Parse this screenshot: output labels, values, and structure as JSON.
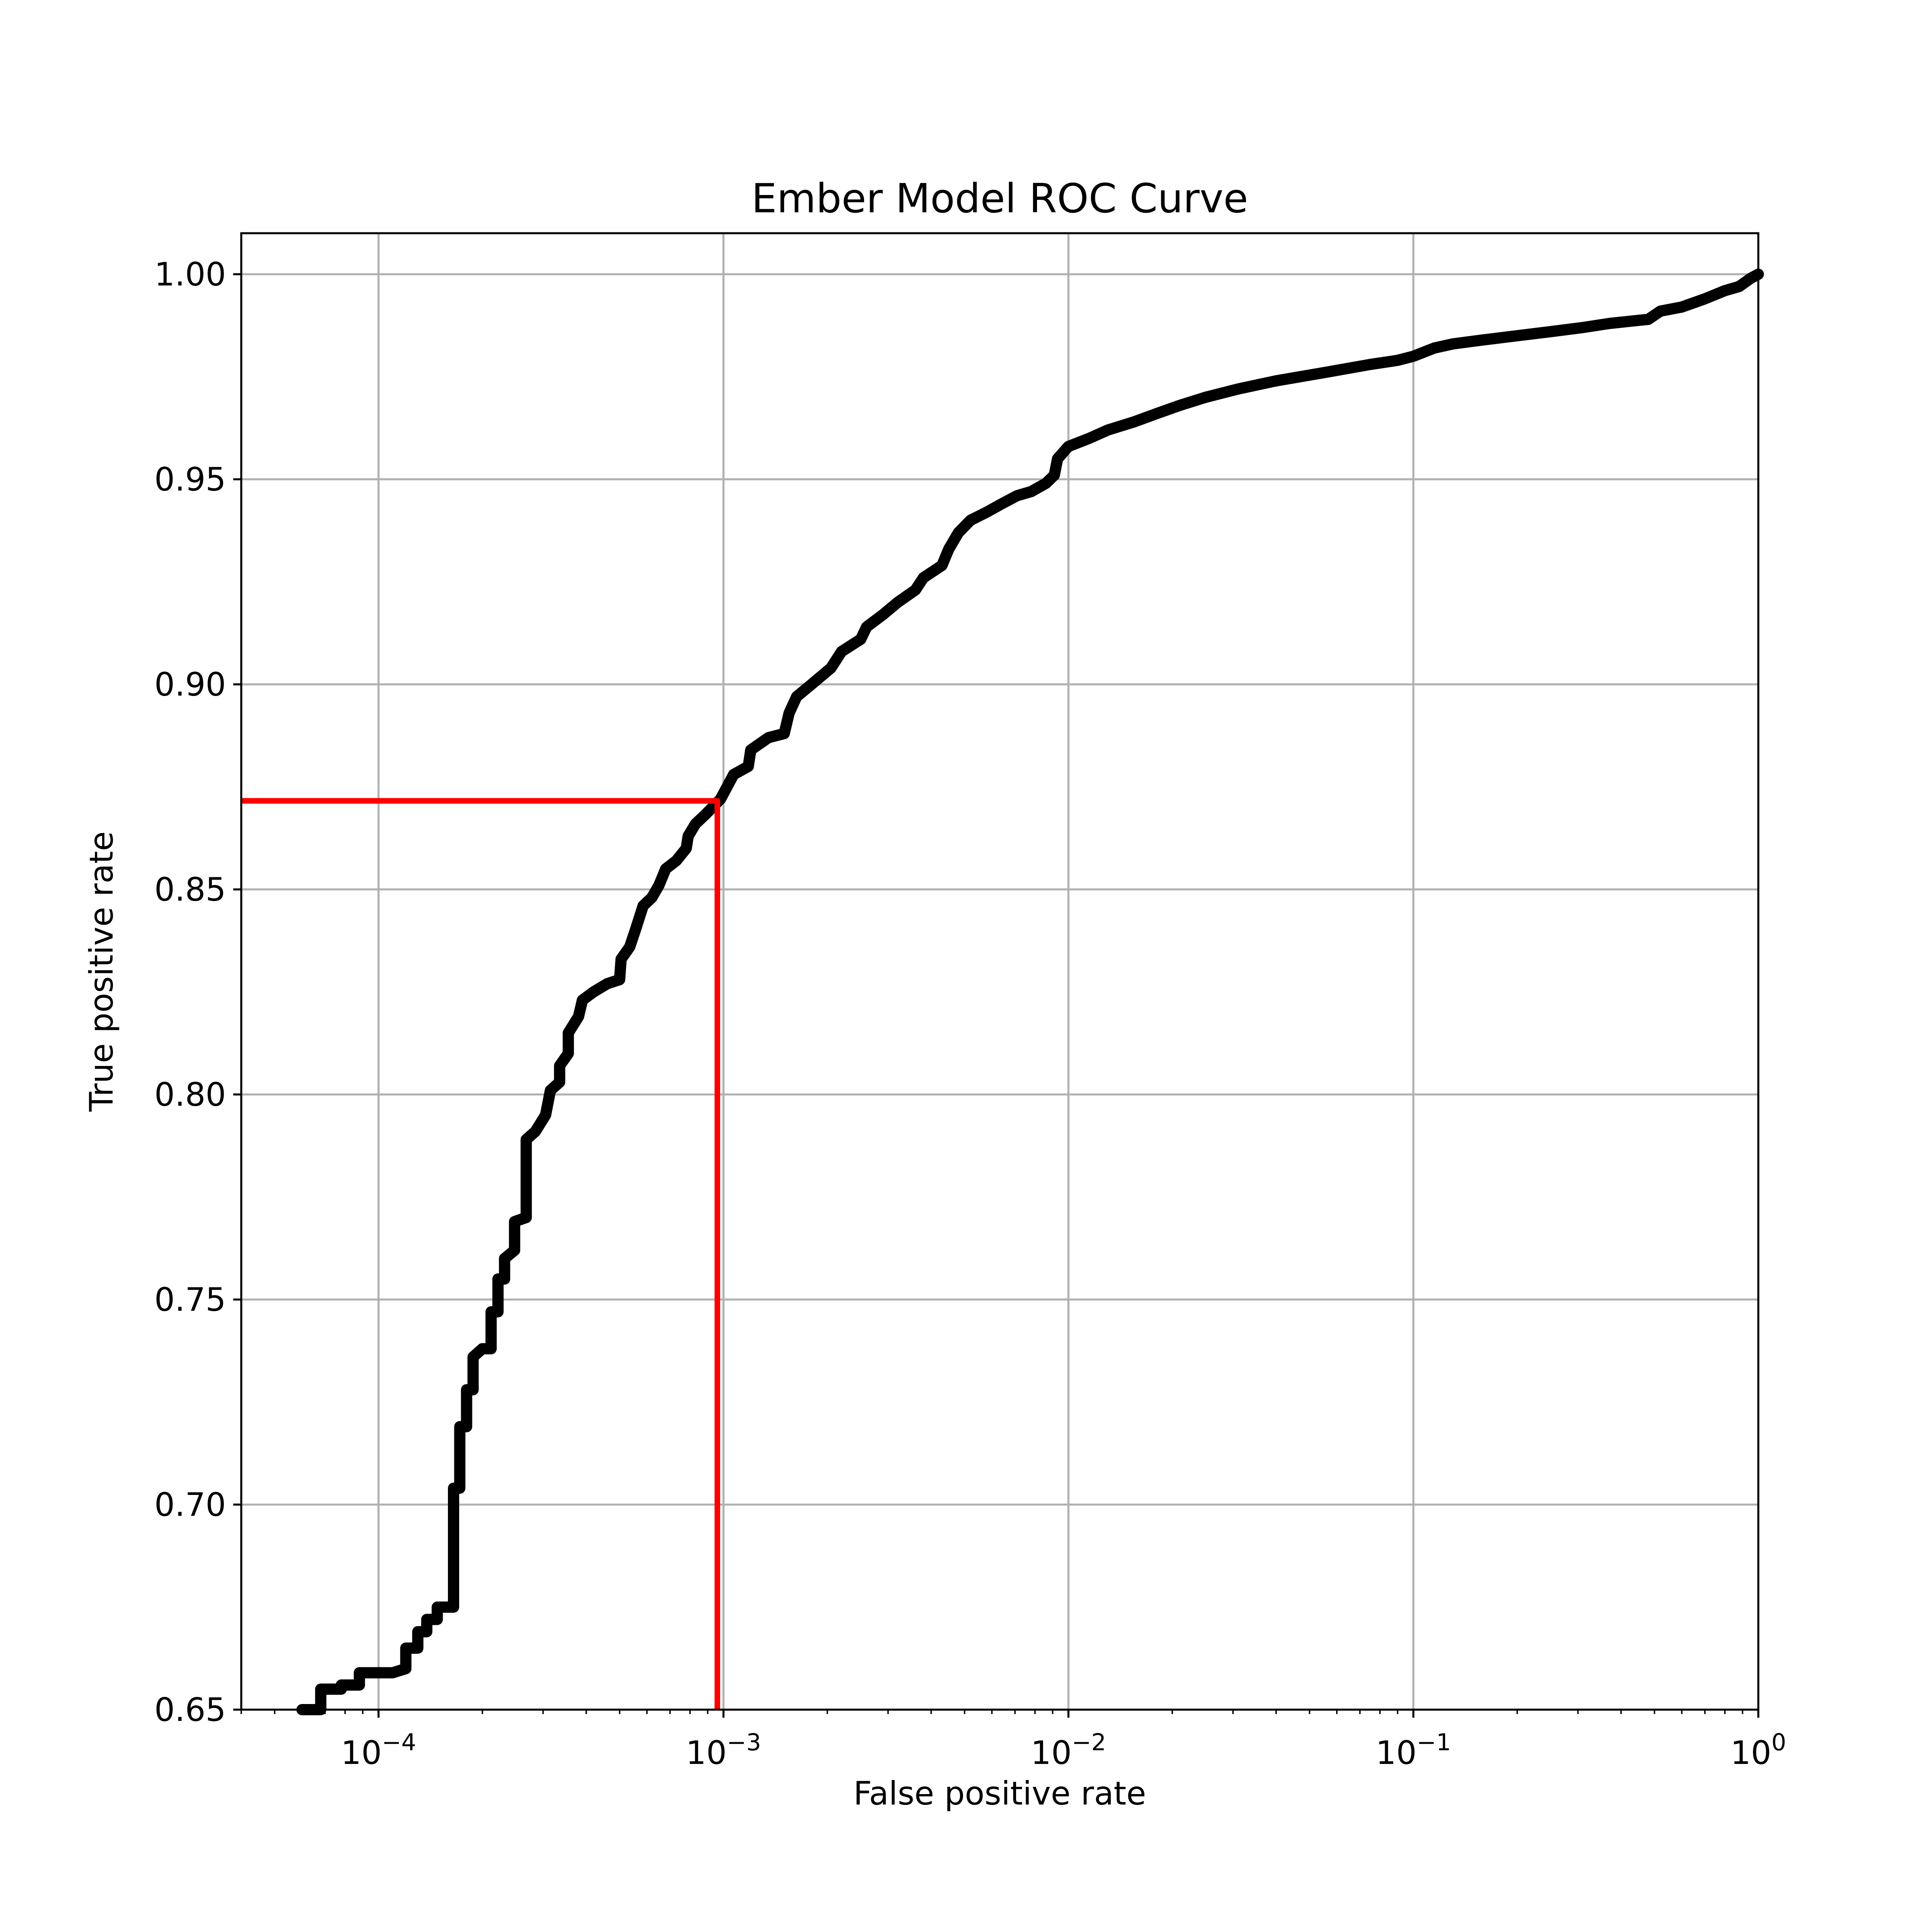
{
  "chart_data": {
    "type": "line",
    "title": "Ember Model ROC Curve",
    "xlabel": "False positive rate",
    "ylabel": "True positive rate",
    "xscale": "log",
    "xlim": [
      4e-05,
      1
    ],
    "ylim": [
      0.65,
      1.01
    ],
    "grid": true,
    "x_ticks": [
      {
        "value": 0.0001,
        "base": "10",
        "exp": "−4"
      },
      {
        "value": 0.001,
        "base": "10",
        "exp": "−3"
      },
      {
        "value": 0.01,
        "base": "10",
        "exp": "−2"
      },
      {
        "value": 0.1,
        "base": "10",
        "exp": "−1"
      },
      {
        "value": 1,
        "base": "10",
        "exp": "0"
      }
    ],
    "y_ticks": [
      {
        "value": 0.65,
        "label": "0.65"
      },
      {
        "value": 0.7,
        "label": "0.70"
      },
      {
        "value": 0.75,
        "label": "0.75"
      },
      {
        "value": 0.8,
        "label": "0.80"
      },
      {
        "value": 0.85,
        "label": "0.85"
      },
      {
        "value": 0.9,
        "label": "0.90"
      },
      {
        "value": 0.95,
        "label": "0.95"
      },
      {
        "value": 1.0,
        "label": "1.00"
      }
    ],
    "series": [
      {
        "color": "#000000",
        "points": [
          [
            6e-05,
            0.65
          ],
          [
            6.8e-05,
            0.65
          ],
          [
            6.8e-05,
            0.655
          ],
          [
            7.8e-05,
            0.655
          ],
          [
            7.8e-05,
            0.656
          ],
          [
            8.8e-05,
            0.656
          ],
          [
            8.8e-05,
            0.659
          ],
          [
            0.00011,
            0.659
          ],
          [
            0.00012,
            0.66
          ],
          [
            0.00012,
            0.665
          ],
          [
            0.00013,
            0.665
          ],
          [
            0.00013,
            0.669
          ],
          [
            0.000138,
            0.669
          ],
          [
            0.000138,
            0.672
          ],
          [
            0.000148,
            0.672
          ],
          [
            0.000148,
            0.675
          ],
          [
            0.000165,
            0.675
          ],
          [
            0.000165,
            0.704
          ],
          [
            0.000172,
            0.704
          ],
          [
            0.000172,
            0.719
          ],
          [
            0.00018,
            0.719
          ],
          [
            0.00018,
            0.728
          ],
          [
            0.000188,
            0.728
          ],
          [
            0.000188,
            0.736
          ],
          [
            0.0002,
            0.738
          ],
          [
            0.000212,
            0.738
          ],
          [
            0.000212,
            0.747
          ],
          [
            0.000222,
            0.747
          ],
          [
            0.000222,
            0.755
          ],
          [
            0.000232,
            0.755
          ],
          [
            0.000232,
            0.76
          ],
          [
            0.000248,
            0.762
          ],
          [
            0.000248,
            0.769
          ],
          [
            0.000268,
            0.77
          ],
          [
            0.000268,
            0.789
          ],
          [
            0.000285,
            0.791
          ],
          [
            0.000305,
            0.795
          ],
          [
            0.000315,
            0.801
          ],
          [
            0.000335,
            0.803
          ],
          [
            0.000335,
            0.807
          ],
          [
            0.000355,
            0.81
          ],
          [
            0.000355,
            0.815
          ],
          [
            0.00038,
            0.819
          ],
          [
            0.00039,
            0.823
          ],
          [
            0.00042,
            0.825
          ],
          [
            0.00046,
            0.827
          ],
          [
            0.0005,
            0.828
          ],
          [
            0.000505,
            0.833
          ],
          [
            0.000535,
            0.836
          ],
          [
            0.000555,
            0.84
          ],
          [
            0.000585,
            0.846
          ],
          [
            0.00062,
            0.848
          ],
          [
            0.00065,
            0.851
          ],
          [
            0.00068,
            0.855
          ],
          [
            0.00073,
            0.857
          ],
          [
            0.00078,
            0.86
          ],
          [
            0.00079,
            0.863
          ],
          [
            0.00083,
            0.866
          ],
          [
            0.00088,
            0.868
          ],
          [
            0.00098,
            0.872
          ],
          [
            0.00107,
            0.878
          ],
          [
            0.00118,
            0.88
          ],
          [
            0.0012,
            0.884
          ],
          [
            0.00135,
            0.887
          ],
          [
            0.0015,
            0.888
          ],
          [
            0.00155,
            0.893
          ],
          [
            0.00163,
            0.897
          ],
          [
            0.0018,
            0.9
          ],
          [
            0.00205,
            0.904
          ],
          [
            0.0022,
            0.908
          ],
          [
            0.0025,
            0.911
          ],
          [
            0.0026,
            0.914
          ],
          [
            0.0029,
            0.917
          ],
          [
            0.0032,
            0.92
          ],
          [
            0.0036,
            0.923
          ],
          [
            0.0038,
            0.926
          ],
          [
            0.0043,
            0.929
          ],
          [
            0.0045,
            0.933
          ],
          [
            0.0048,
            0.937
          ],
          [
            0.0052,
            0.94
          ],
          [
            0.0058,
            0.942
          ],
          [
            0.0064,
            0.944
          ],
          [
            0.0071,
            0.946
          ],
          [
            0.0078,
            0.947
          ],
          [
            0.0086,
            0.949
          ],
          [
            0.0091,
            0.951
          ],
          [
            0.0093,
            0.955
          ],
          [
            0.01,
            0.958
          ],
          [
            0.0115,
            0.96
          ],
          [
            0.013,
            0.962
          ],
          [
            0.0155,
            0.964
          ],
          [
            0.018,
            0.966
          ],
          [
            0.021,
            0.968
          ],
          [
            0.025,
            0.97
          ],
          [
            0.031,
            0.972
          ],
          [
            0.04,
            0.974
          ],
          [
            0.055,
            0.976
          ],
          [
            0.075,
            0.978
          ],
          [
            0.09,
            0.979
          ],
          [
            0.1,
            0.98
          ],
          [
            0.115,
            0.982
          ],
          [
            0.13,
            0.983
          ],
          [
            0.16,
            0.984
          ],
          [
            0.2,
            0.985
          ],
          [
            0.25,
            0.986
          ],
          [
            0.31,
            0.987
          ],
          [
            0.37,
            0.988
          ],
          [
            0.48,
            0.989
          ],
          [
            0.52,
            0.991
          ],
          [
            0.6,
            0.992
          ],
          [
            0.7,
            0.994
          ],
          [
            0.8,
            0.996
          ],
          [
            0.88,
            0.997
          ],
          [
            0.95,
            0.999
          ],
          [
            1.0,
            1.0
          ]
        ]
      },
      {
        "color": "#ff0000",
        "points": [
          [
            4e-05,
            0.8716
          ],
          [
            0.00096,
            0.8716
          ],
          [
            0.00096,
            0.65
          ]
        ]
      }
    ]
  }
}
